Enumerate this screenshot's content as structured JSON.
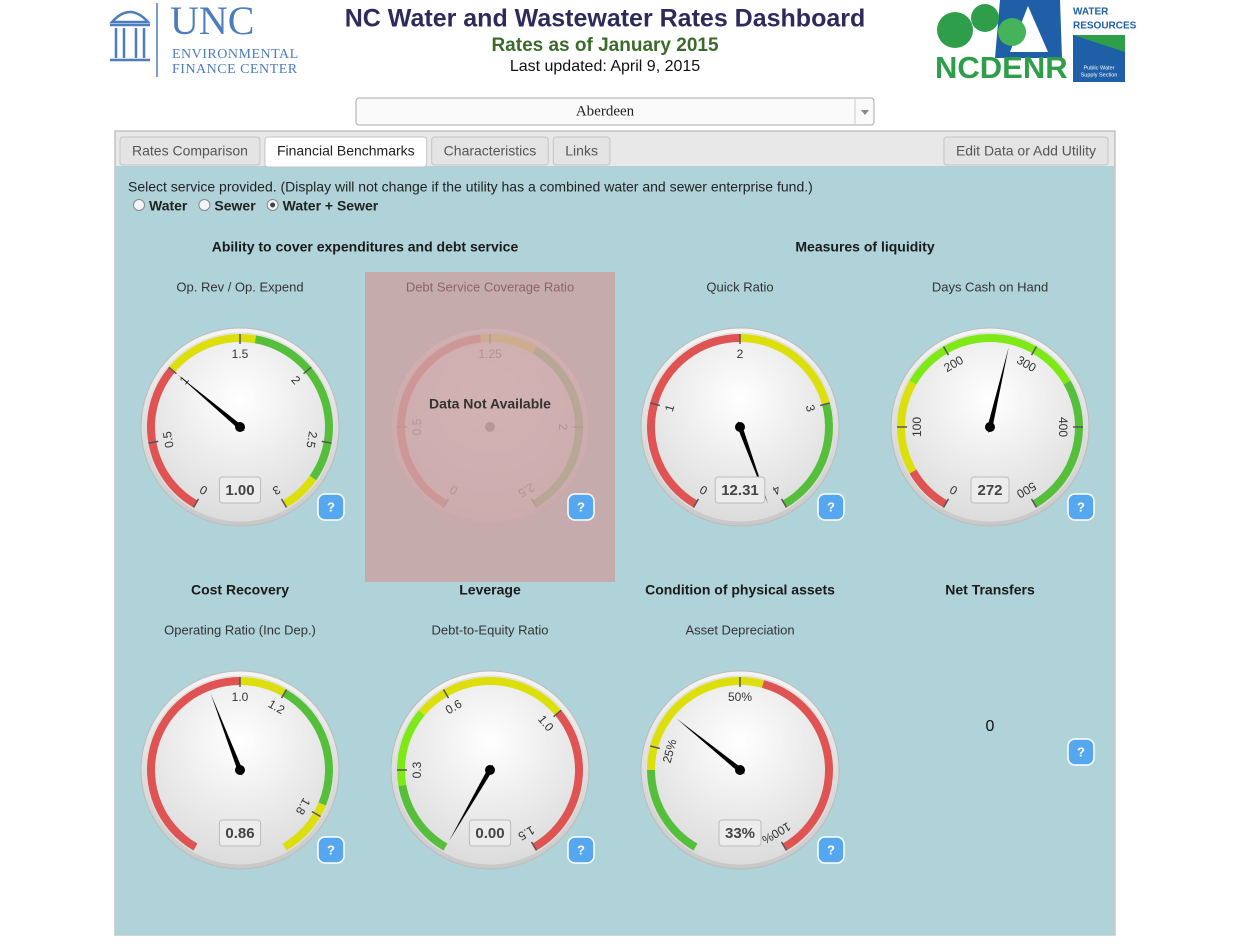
{
  "header": {
    "title": "NC Water and Wastewater Rates Dashboard",
    "subtitle": "Rates as of January 2015",
    "updated": "Last updated: April 9, 2015",
    "left_logo": {
      "name": "UNC",
      "lines": [
        "ENVIRONMENTAL",
        "FINANCE CENTER"
      ]
    },
    "right_logo": {
      "name": "NCDENR",
      "division": [
        "WATER",
        "RESOURCES"
      ],
      "section": [
        "Public Water",
        "Supply Section"
      ]
    }
  },
  "selector": {
    "value": "Aberdeen"
  },
  "tabs": [
    {
      "label": "Rates Comparison",
      "active": false
    },
    {
      "label": "Financial Benchmarks",
      "active": true
    },
    {
      "label": "Characteristics",
      "active": false
    },
    {
      "label": "Links",
      "active": false
    }
  ],
  "right_tab": {
    "label": "Edit Data or Add Utility"
  },
  "instructions": "Select service provided. (Display will not change if the utility has a combined water and sewer enterprise fund.)",
  "services": [
    {
      "label": "Water",
      "checked": false
    },
    {
      "label": "Sewer",
      "checked": false
    },
    {
      "label": "Water + Sewer",
      "checked": true
    }
  ],
  "help_label": "?",
  "sections": [
    {
      "heading": "Ability to cover expenditures and debt service",
      "gauges": [
        {
          "title": "Op. Rev / Op. Expend",
          "range": [
            0,
            3
          ],
          "ticks": [
            0,
            0.5,
            1,
            1.5,
            2,
            2.5,
            3
          ],
          "bands": [
            {
              "from": 0,
              "to": 1,
              "color": "#df5353"
            },
            {
              "from": 1,
              "to": 1.6,
              "color": "#dddf0d"
            },
            {
              "from": 1.6,
              "to": 2.75,
              "color": "#55bf3b"
            },
            {
              "from": 2.75,
              "to": 3,
              "color": "#dddf0d"
            }
          ],
          "value": 1,
          "value_label": "1.00"
        },
        {
          "title": "Debt Service Coverage Ratio",
          "range": [
            0,
            2.5
          ],
          "ticks": [
            0,
            0.5,
            1.25,
            2,
            2.5
          ],
          "bands": [
            {
              "from": 0,
              "to": 1.2,
              "color": "#df5353"
            },
            {
              "from": 1.2,
              "to": 1.5,
              "color": "#dddf0d"
            },
            {
              "from": 1.5,
              "to": 2.5,
              "color": "#55bf3b"
            }
          ],
          "not_available": "Data Not Available"
        }
      ]
    },
    {
      "heading": "Measures of liquidity",
      "gauges": [
        {
          "title": "Quick Ratio",
          "range": [
            0,
            4
          ],
          "ticks": [
            0,
            1,
            2,
            3,
            4
          ],
          "bands": [
            {
              "from": 0,
              "to": 2,
              "color": "#df5353"
            },
            {
              "from": 2,
              "to": 3,
              "color": "#dddf0d"
            },
            {
              "from": 3,
              "to": 4,
              "color": "#55bf3b"
            }
          ],
          "value": 12.31
        },
        {
          "title": "Days Cash on Hand",
          "range": [
            0,
            500
          ],
          "ticks": [
            0,
            100,
            200,
            300,
            400,
            500
          ],
          "bands": [
            {
              "from": 0,
              "to": 50,
              "color": "#df5353"
            },
            {
              "from": 50,
              "to": 150,
              "color": "#dddf0d"
            },
            {
              "from": 150,
              "to": 350,
              "color": "#7fe817"
            },
            {
              "from": 350,
              "to": 500,
              "color": "#55bf3b"
            }
          ],
          "value": 272
        }
      ]
    },
    {
      "heading": "Cost Recovery",
      "gauges": [
        {
          "title": "Operating Ratio (Inc Dep.)",
          "range": [
            0,
            2
          ],
          "ticks": [
            {
              "value": 1,
              "label": "1.0"
            },
            1.2,
            1.8
          ],
          "bands": [
            {
              "from": 0,
              "to": 1,
              "color": "#df5353"
            },
            {
              "from": 1,
              "to": 1.2,
              "color": "#dddf0d"
            },
            {
              "from": 1.2,
              "to": 1.75,
              "color": "#55bf3b"
            },
            {
              "from": 1.75,
              "to": 2,
              "color": "#dddf0d"
            }
          ],
          "value": 0.86
        }
      ]
    },
    {
      "heading": "Leverage",
      "gauges": [
        {
          "title": "Debt-to-Equity Ratio",
          "range": [
            0,
            1.5
          ],
          "ticks": [
            0.3,
            0.6,
            {
              "value": 1,
              "label": "1.0"
            },
            1.5
          ],
          "bands": [
            {
              "from": 0,
              "to": 0.25,
              "color": "#55bf3b"
            },
            {
              "from": 0.25,
              "to": 0.5,
              "color": "#7fe817"
            },
            {
              "from": 0.5,
              "to": 1,
              "color": "#dddf0d"
            },
            {
              "from": 1,
              "to": 1.5,
              "color": "#df5353"
            }
          ],
          "value": 0,
          "value_label": "0.00"
        }
      ]
    },
    {
      "heading": "Condition of physical assets",
      "gauges": [
        {
          "title": "Asset Depreciation",
          "range": [
            0,
            100
          ],
          "ticks": [
            {
              "value": 25,
              "label": "25%"
            },
            {
              "value": 50,
              "label": "50%"
            },
            {
              "value": 100,
              "label": "100%"
            }
          ],
          "bands": [
            {
              "from": 0,
              "to": 20,
              "color": "#55bf3b"
            },
            {
              "from": 20,
              "to": 55,
              "color": "#dddf0d"
            },
            {
              "from": 55,
              "to": 100,
              "color": "#df5353"
            }
          ],
          "value": 33,
          "value_label": "33%"
        }
      ]
    },
    {
      "heading": "Net Transfers",
      "value": 0
    }
  ]
}
